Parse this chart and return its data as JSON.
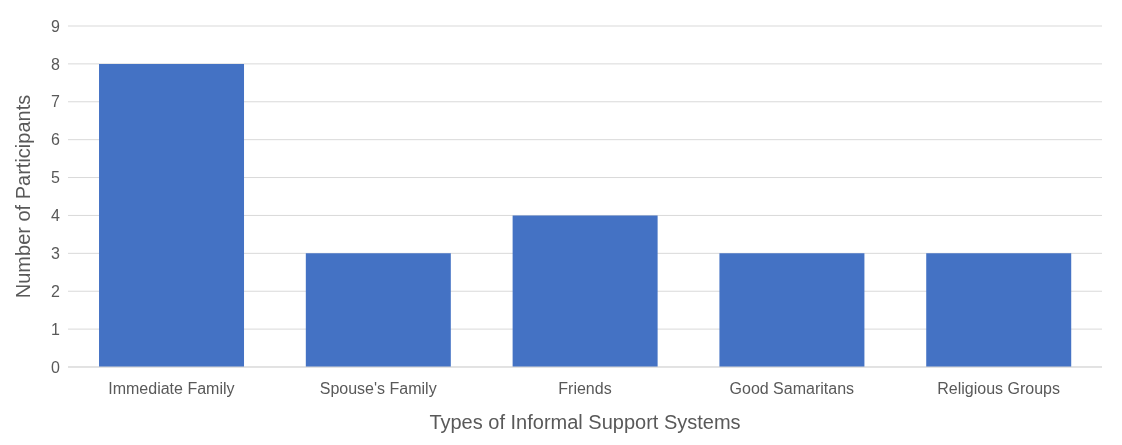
{
  "chart_data": {
    "type": "bar",
    "xlabel": "Types of Informal Support Systems",
    "ylabel": "Number of Participants",
    "categories": [
      "Immediate Family",
      "Spouse's Family",
      "Friends",
      "Good Samaritans",
      "Religious Groups"
    ],
    "values": [
      8,
      3,
      4,
      3,
      3
    ],
    "color": "#4472c4",
    "ylim": [
      0,
      9
    ],
    "yticks": [
      0,
      1,
      2,
      3,
      4,
      5,
      6,
      7,
      8,
      9
    ],
    "grid": "y"
  }
}
